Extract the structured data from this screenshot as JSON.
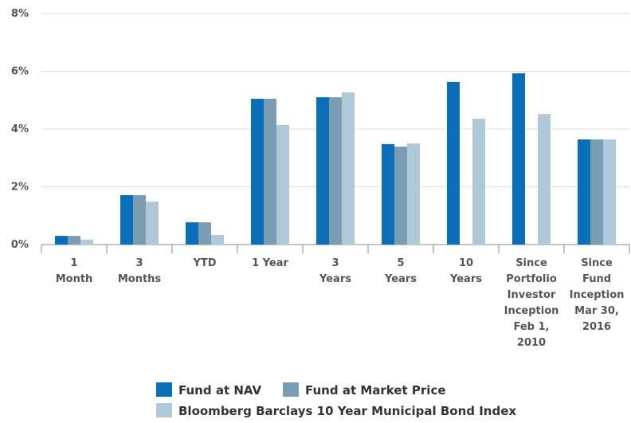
{
  "chart_data": {
    "type": "bar",
    "categories": [
      "1\nMonth",
      "3\nMonths",
      "YTD",
      "1 Year",
      "3\nYears",
      "5\nYears",
      "10\nYears",
      "Since\nPortfolio\nInvestor\nInception\nFeb 1,\n2010",
      "Since\nFund\nInception\nMar 30,\n2016"
    ],
    "series": [
      {
        "name": "Fund at NAV",
        "color": "#0a6fb8",
        "values": [
          0.3,
          1.71,
          0.77,
          5.05,
          5.1,
          3.48,
          5.63,
          5.93,
          3.64
        ]
      },
      {
        "name": "Fund at Market Price",
        "color": "#7a9db4",
        "values": [
          0.3,
          1.71,
          0.77,
          5.05,
          5.1,
          3.39,
          null,
          null,
          3.64
        ]
      },
      {
        "name": "Bloomberg Barclays 10 Year Municipal Bond Index",
        "color": "#b0c9d8",
        "values": [
          0.17,
          1.49,
          0.33,
          4.14,
          5.27,
          3.5,
          4.36,
          4.52,
          3.64
        ]
      }
    ],
    "ylim": [
      0,
      8
    ],
    "yticks": [
      {
        "value": 0,
        "label": "0%"
      },
      {
        "value": 2,
        "label": "2%"
      },
      {
        "value": 4,
        "label": "4%"
      },
      {
        "value": 6,
        "label": "6%"
      },
      {
        "value": 8,
        "label": "8%"
      }
    ],
    "grid": true
  }
}
